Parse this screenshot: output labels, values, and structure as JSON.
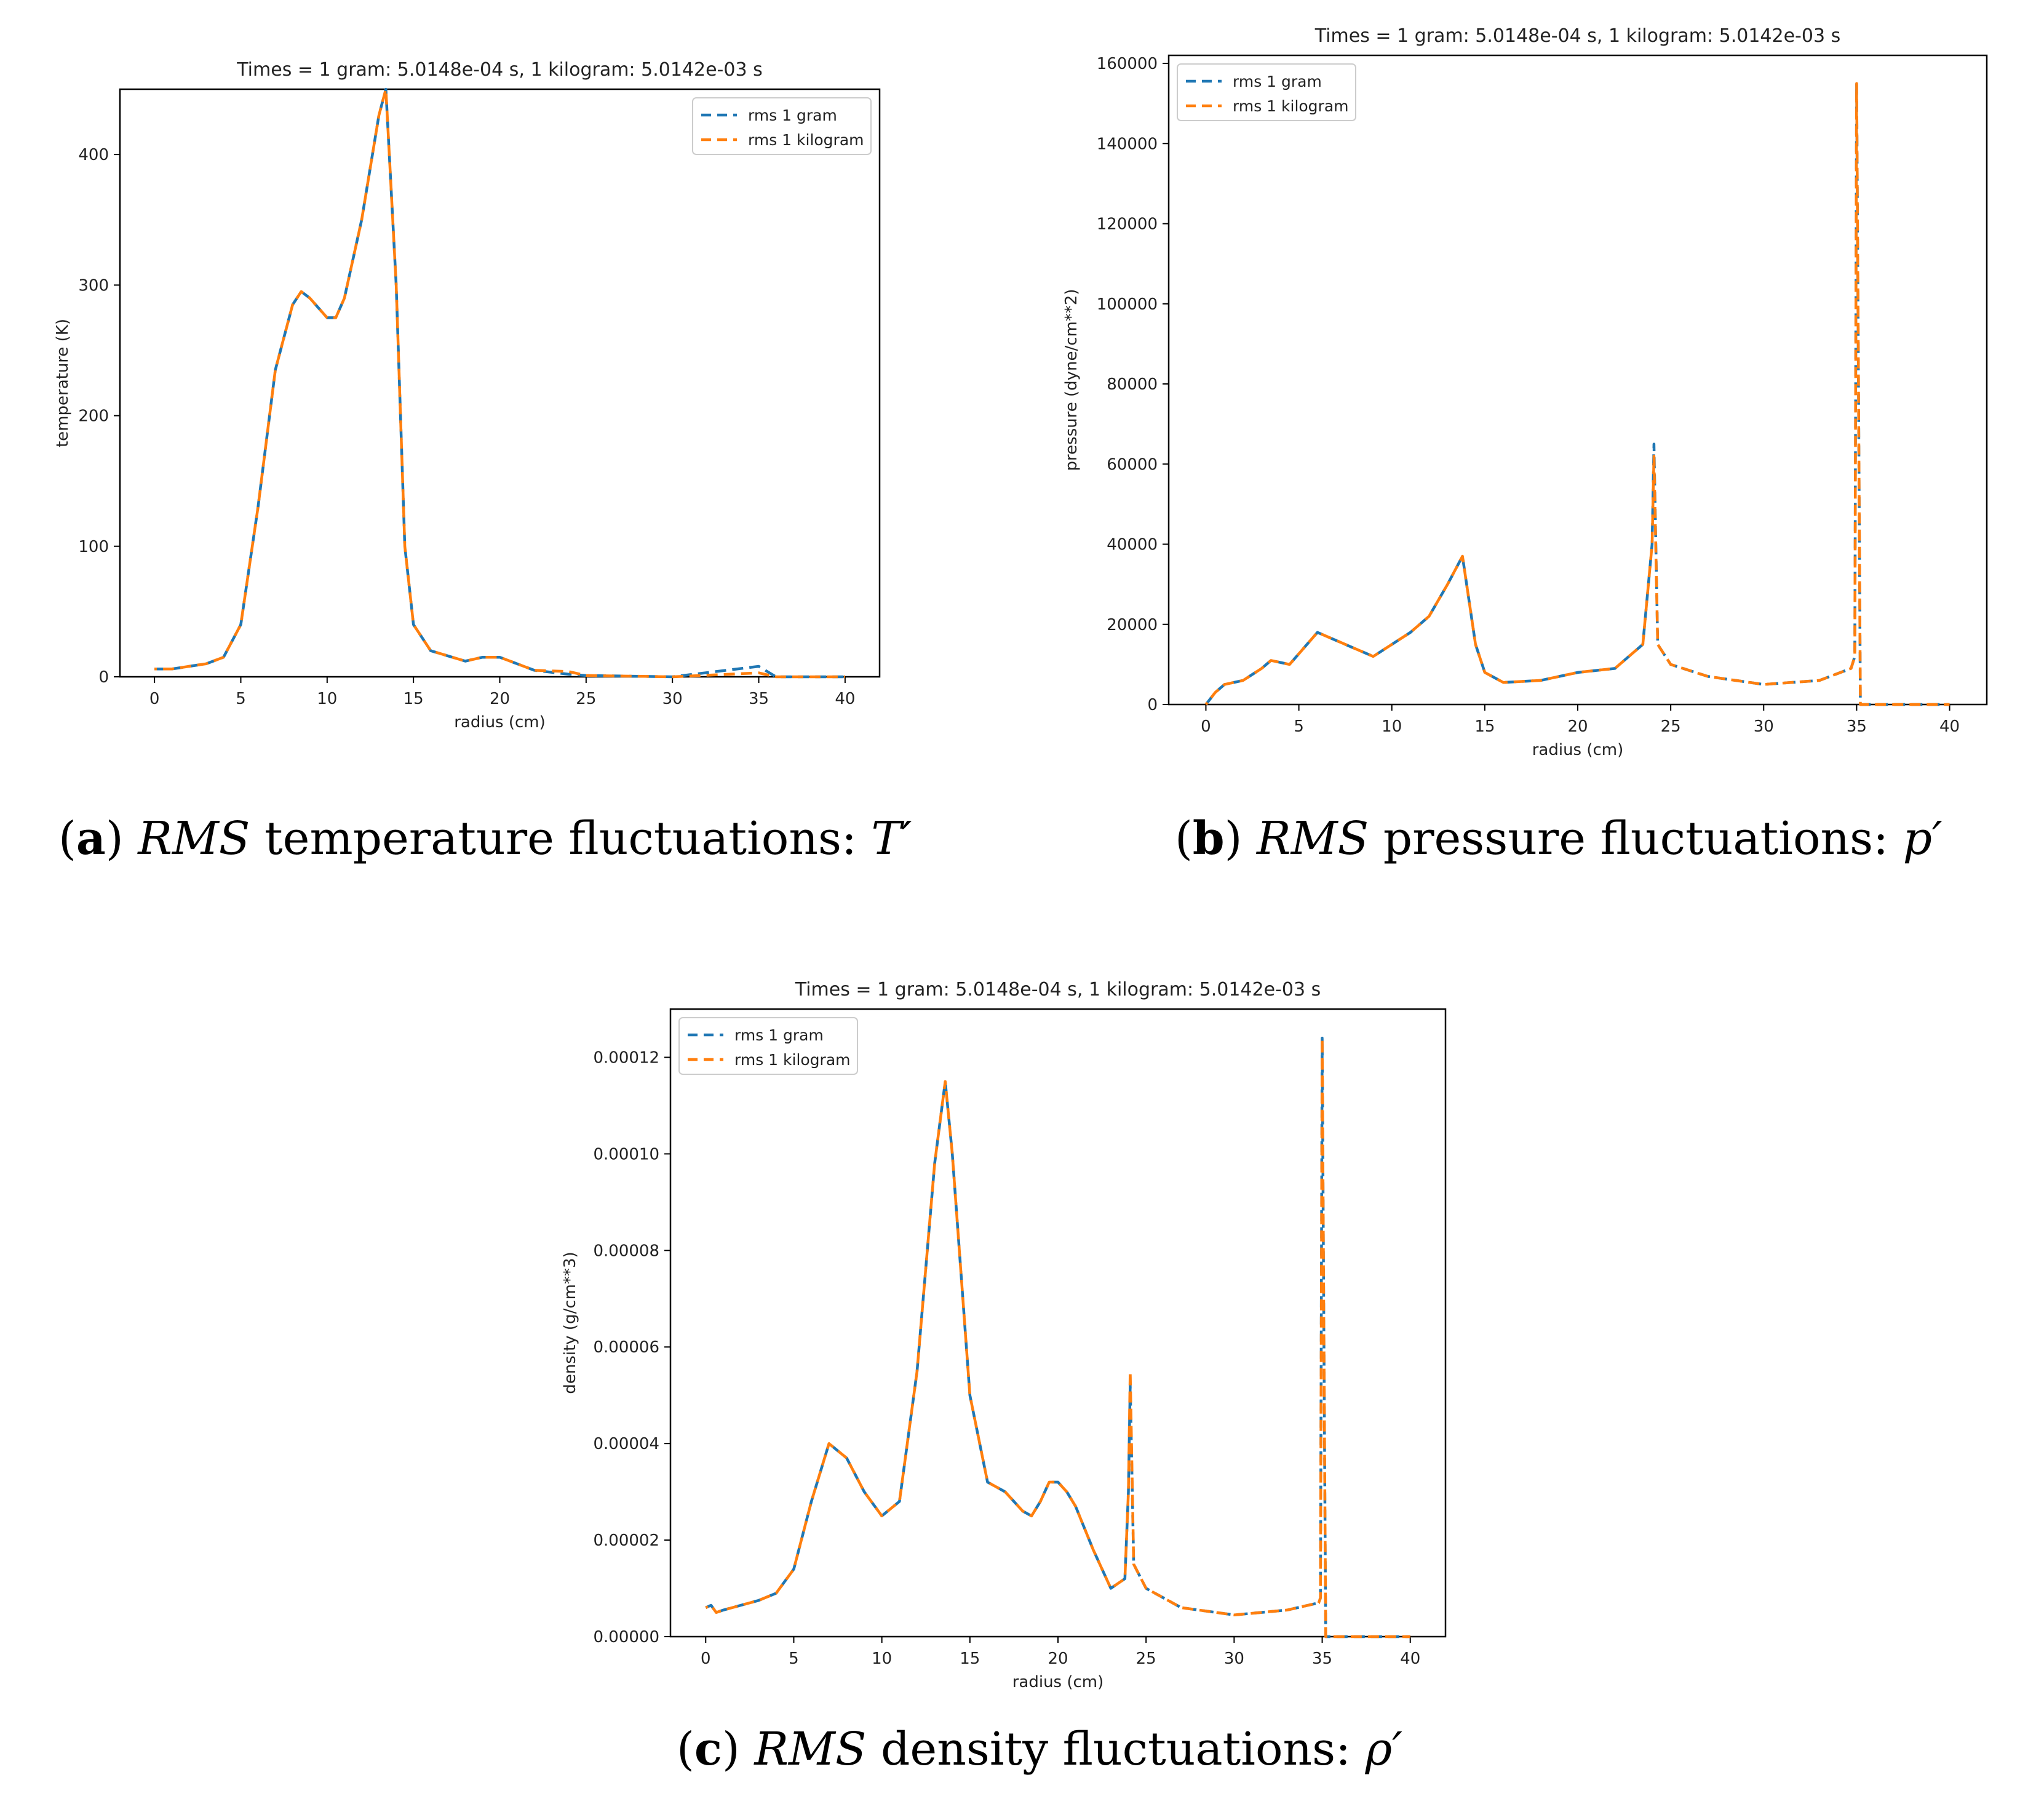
{
  "colors": {
    "series_gram": "#1f77b4",
    "series_kilogram": "#ff7f0e",
    "axes": "#000000"
  },
  "captions": [
    {
      "label": "a",
      "italic": "RMS",
      "text": " temperature fluctuations:  ",
      "symbol": "T′"
    },
    {
      "label": "b",
      "italic": "RMS",
      "text": " pressure fluctuations:  ",
      "symbol": "p′"
    },
    {
      "label": "c",
      "italic": "RMS",
      "text": " density fluctuations:  ",
      "symbol": "ρ′"
    }
  ],
  "chart_data": [
    {
      "type": "line",
      "title": "Times = 1 gram:   5.0148e-04 s,   1 kilogram:   5.0142e-03 s",
      "xlabel": "radius (cm)",
      "ylabel": "temperature (K)",
      "xlim": [
        -2,
        42
      ],
      "ylim": [
        0,
        450
      ],
      "xticks": [
        "0",
        "5",
        "10",
        "15",
        "20",
        "25",
        "30",
        "35",
        "40"
      ],
      "yticks": [
        "0",
        "100",
        "200",
        "300",
        "400"
      ],
      "legend_position": "top-right",
      "series": [
        {
          "name": "rms 1 gram",
          "color": "#1f77b4",
          "x": [
            0,
            1,
            2,
            3,
            4,
            5,
            6,
            7,
            8,
            8.5,
            9,
            10,
            10.5,
            11,
            12,
            13,
            13.4,
            14,
            14.5,
            15,
            16,
            18,
            19,
            20,
            21,
            22,
            24,
            25,
            30,
            35,
            36,
            40
          ],
          "y": [
            6,
            6,
            8,
            10,
            15,
            40,
            130,
            235,
            285,
            295,
            290,
            275,
            275,
            290,
            350,
            430,
            450,
            300,
            100,
            40,
            20,
            12,
            15,
            15,
            10,
            5,
            2,
            1,
            0,
            8,
            0,
            0
          ]
        },
        {
          "name": "rms 1 kilogram",
          "color": "#ff7f0e",
          "x": [
            0,
            1,
            2,
            3,
            4,
            5,
            6,
            7,
            8,
            8.5,
            9,
            10,
            10.5,
            11,
            12,
            13,
            13.4,
            14,
            14.5,
            15,
            16,
            18,
            19,
            20,
            21,
            22,
            24,
            25,
            30,
            35,
            36,
            40
          ],
          "y": [
            6,
            6,
            8,
            10,
            15,
            40,
            130,
            235,
            285,
            295,
            290,
            275,
            275,
            290,
            350,
            430,
            450,
            300,
            100,
            40,
            20,
            12,
            15,
            15,
            10,
            5,
            4,
            1,
            0,
            3,
            0,
            0
          ]
        }
      ]
    },
    {
      "type": "line",
      "title": "Times = 1 gram:   5.0148e-04 s,   1 kilogram:   5.0142e-03 s",
      "xlabel": "radius (cm)",
      "ylabel": "pressure (dyne/cm**2)",
      "xlim": [
        -2,
        42
      ],
      "ylim": [
        0,
        162000
      ],
      "xticks": [
        "0",
        "5",
        "10",
        "15",
        "20",
        "25",
        "30",
        "35",
        "40"
      ],
      "yticks": [
        "0",
        "20000",
        "40000",
        "60000",
        "80000",
        "100000",
        "120000",
        "140000",
        "160000"
      ],
      "legend_position": "top-left",
      "series": [
        {
          "name": "rms 1 gram",
          "color": "#1f77b4",
          "x": [
            0,
            0.5,
            1,
            2,
            3,
            3.5,
            4.5,
            6,
            7,
            9,
            11,
            12,
            13,
            13.8,
            14.5,
            15,
            16,
            18,
            20,
            22,
            23.5,
            24,
            24.1,
            24.3,
            25,
            27,
            30,
            33,
            34.7,
            34.9,
            35,
            35.1,
            35.2,
            36,
            40
          ],
          "y": [
            0,
            3000,
            5000,
            6000,
            9000,
            11000,
            10000,
            18000,
            16000,
            12000,
            18000,
            22000,
            30000,
            37000,
            15000,
            8000,
            5500,
            6000,
            8000,
            9000,
            15000,
            40000,
            65000,
            15000,
            10000,
            7000,
            5000,
            6000,
            9000,
            12000,
            155000,
            80000,
            0,
            0,
            0
          ]
        },
        {
          "name": "rms 1 kilogram",
          "color": "#ff7f0e",
          "x": [
            0,
            0.5,
            1,
            2,
            3,
            3.5,
            4.5,
            6,
            7,
            9,
            11,
            12,
            13,
            13.8,
            14.5,
            15,
            16,
            18,
            20,
            22,
            23.5,
            24,
            24.1,
            24.3,
            25,
            27,
            30,
            33,
            34.7,
            34.9,
            35,
            35.1,
            35.2,
            36,
            40
          ],
          "y": [
            0,
            3000,
            5000,
            6000,
            9000,
            11000,
            10000,
            18000,
            16000,
            12000,
            18000,
            22000,
            30000,
            37000,
            15000,
            8000,
            5500,
            6000,
            8000,
            9000,
            15000,
            40000,
            62000,
            15000,
            10000,
            7000,
            5000,
            6000,
            9000,
            12000,
            155000,
            80000,
            0,
            0,
            0
          ]
        }
      ]
    },
    {
      "type": "line",
      "title": "Times = 1 gram:   5.0148e-04 s,   1 kilogram:   5.0142e-03 s",
      "xlabel": "radius (cm)",
      "ylabel": "density (g/cm**3)",
      "xlim": [
        -2,
        42
      ],
      "ylim": [
        0,
        0.00013
      ],
      "xticks": [
        "0",
        "5",
        "10",
        "15",
        "20",
        "25",
        "30",
        "35",
        "40"
      ],
      "yticks": [
        "0.00000",
        "0.00002",
        "0.00004",
        "0.00006",
        "0.00008",
        "0.00010",
        "0.00012"
      ],
      "legend_position": "top-left",
      "series": [
        {
          "name": "rms 1 gram",
          "color": "#1f77b4",
          "x": [
            0,
            0.3,
            0.6,
            1,
            2,
            3,
            4,
            5,
            6,
            7,
            8,
            9,
            10,
            11,
            12,
            13,
            13.6,
            14,
            15,
            16,
            17,
            18,
            18.5,
            19,
            19.5,
            20,
            20.5,
            21,
            22,
            23,
            23.8,
            24,
            24.1,
            24.3,
            25,
            27,
            30,
            33,
            34.8,
            34.9,
            35,
            35.1,
            35.2,
            36,
            40
          ],
          "y": [
            6e-06,
            6.5e-06,
            5e-06,
            5.5e-06,
            6.5e-06,
            7.5e-06,
            9e-06,
            1.4e-05,
            2.8e-05,
            4e-05,
            3.7e-05,
            3e-05,
            2.5e-05,
            2.8e-05,
            5.5e-05,
            9.8e-05,
            0.000115,
            0.0001,
            5e-05,
            3.2e-05,
            3e-05,
            2.6e-05,
            2.5e-05,
            2.8e-05,
            3.2e-05,
            3.2e-05,
            3e-05,
            2.7e-05,
            1.8e-05,
            1e-05,
            1.2e-05,
            3e-05,
            5.2e-05,
            1.5e-05,
            1e-05,
            6e-06,
            4.5e-06,
            5.5e-06,
            7e-06,
            8e-06,
            0.000124,
            6e-05,
            0,
            0,
            0
          ]
        },
        {
          "name": "rms 1 kilogram",
          "color": "#ff7f0e",
          "x": [
            0,
            0.3,
            0.6,
            1,
            2,
            3,
            4,
            5,
            6,
            7,
            8,
            9,
            10,
            11,
            12,
            13,
            13.6,
            14,
            15,
            16,
            17,
            18,
            18.5,
            19,
            19.5,
            20,
            20.5,
            21,
            22,
            23,
            23.8,
            24,
            24.1,
            24.3,
            25,
            27,
            30,
            33,
            34.8,
            34.9,
            35,
            35.1,
            35.2,
            36,
            40
          ],
          "y": [
            6e-06,
            6.5e-06,
            5e-06,
            5.5e-06,
            6.5e-06,
            7.5e-06,
            9e-06,
            1.4e-05,
            2.8e-05,
            4e-05,
            3.7e-05,
            3e-05,
            2.5e-05,
            2.8e-05,
            5.5e-05,
            9.8e-05,
            0.000115,
            0.0001,
            5e-05,
            3.2e-05,
            3e-05,
            2.6e-05,
            2.5e-05,
            2.8e-05,
            3.2e-05,
            3.2e-05,
            3e-05,
            2.7e-05,
            1.8e-05,
            1e-05,
            1.2e-05,
            3e-05,
            5.5e-05,
            1.5e-05,
            1e-05,
            6e-06,
            4.5e-06,
            5.5e-06,
            7e-06,
            8e-06,
            0.000124,
            6e-05,
            0,
            0,
            0
          ]
        }
      ]
    }
  ]
}
